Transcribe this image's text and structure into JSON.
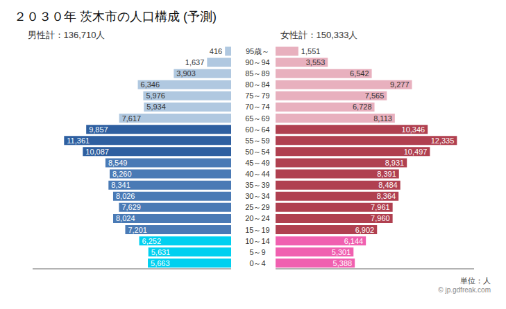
{
  "chart_data": {
    "type": "bar",
    "orientation": "horizontal",
    "title": "２０３０年 茨木市の人口構成 (予測)",
    "categories": [
      "0～4",
      "5～9",
      "10～14",
      "15～19",
      "20～24",
      "25～29",
      "30～34",
      "35～39",
      "40～44",
      "45～49",
      "50～54",
      "55～59",
      "60～64",
      "65～69",
      "70～74",
      "75～79",
      "80～84",
      "85～89",
      "90～94",
      "95歳～"
    ],
    "series": [
      {
        "name": "男性計：136,710人",
        "values": [
          5663,
          5631,
          6252,
          7201,
          8024,
          7629,
          8026,
          8341,
          8260,
          8549,
          10087,
          11361,
          9857,
          7617,
          5934,
          5976,
          6346,
          3903,
          1637,
          416
        ],
        "value_labels": [
          "5,663",
          "5,631",
          "6,252",
          "7,201",
          "8,024",
          "7,629",
          "8,026",
          "8,341",
          "8,260",
          "8,549",
          "10,087",
          "11,361",
          "9,857",
          "7,617",
          "5,934",
          "5,976",
          "6,346",
          "3,903",
          "1,637",
          "416"
        ],
        "colors": [
          "#00d0f0",
          "#00d0f0",
          "#00d0f0",
          "#4a7ab5",
          "#4a7ab5",
          "#4a7ab5",
          "#4a7ab5",
          "#4a7ab5",
          "#4a7ab5",
          "#4a7ab5",
          "#2e5fa0",
          "#2e5fa0",
          "#2e5fa0",
          "#b0c8e0",
          "#b0c8e0",
          "#b0c8e0",
          "#b0c8e0",
          "#b0c8e0",
          "#b0c8e0",
          "#b0c8e0"
        ]
      },
      {
        "name": "女性計：150,333人",
        "values": [
          5388,
          5301,
          6144,
          6902,
          7960,
          7961,
          8364,
          8484,
          8391,
          8931,
          10497,
          12335,
          10346,
          8113,
          6728,
          7565,
          9277,
          6542,
          3553,
          1551
        ],
        "value_labels": [
          "5,388",
          "5,301",
          "6,144",
          "6,902",
          "7,960",
          "7,961",
          "8,364",
          "8,484",
          "8,391",
          "8,931",
          "10,497",
          "12,335",
          "10,346",
          "8,113",
          "6,728",
          "7,565",
          "9,277",
          "6,542",
          "3,553",
          "1,551"
        ],
        "colors": [
          "#f060b0",
          "#f060b0",
          "#f060b0",
          "#b04050",
          "#b04050",
          "#b04050",
          "#b04050",
          "#b04050",
          "#b04050",
          "#b04050",
          "#b04050",
          "#b04050",
          "#b04050",
          "#e8b0be",
          "#e8b0be",
          "#e8b0be",
          "#e8b0be",
          "#e8b0be",
          "#e8b0be",
          "#e8b0be"
        ]
      }
    ],
    "xlim": [
      0,
      13500
    ],
    "xticks": [],
    "tick_labels": "y",
    "data_labels": true,
    "grid": false,
    "annotations": [
      "単位：人",
      "© jp.gdfreak.com"
    ]
  }
}
